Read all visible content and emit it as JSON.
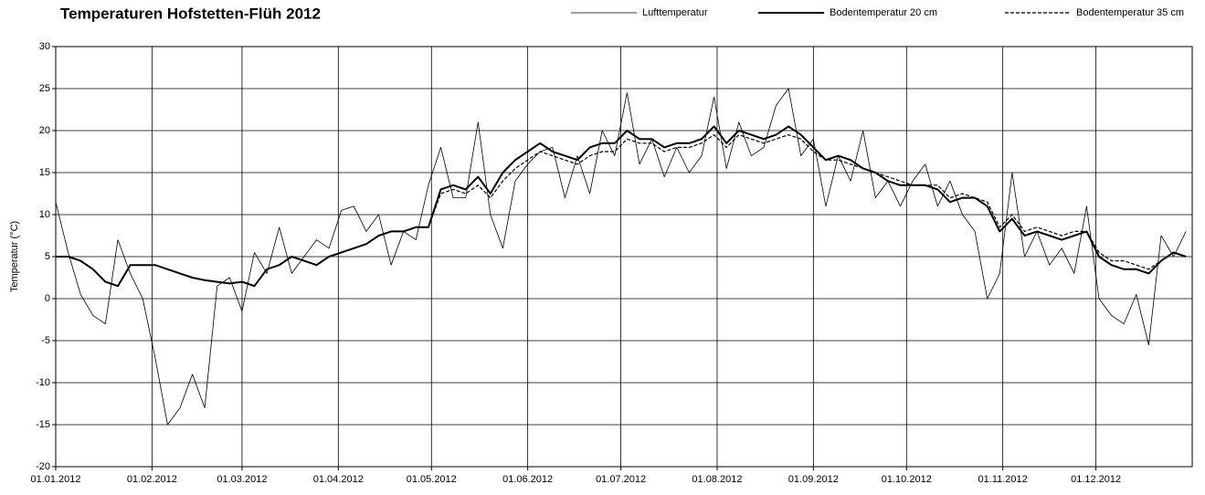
{
  "chart_data": {
    "type": "line",
    "title": "Temperaturen Hofstetten-Flüh 2012",
    "y_label": "Temperatur (°C)",
    "x": [
      "01.01.2012",
      "05.01.2012",
      "09.01.2012",
      "13.01.2012",
      "17.01.2012",
      "21.01.2012",
      "25.01.2012",
      "29.01.2012",
      "02.02.2012",
      "06.02.2012",
      "10.02.2012",
      "14.02.2012",
      "18.02.2012",
      "22.02.2012",
      "26.02.2012",
      "01.03.2012",
      "05.03.2012",
      "09.03.2012",
      "13.03.2012",
      "17.03.2012",
      "21.03.2012",
      "25.03.2012",
      "29.03.2012",
      "02.04.2012",
      "06.04.2012",
      "10.04.2012",
      "14.04.2012",
      "18.04.2012",
      "22.04.2012",
      "26.04.2012",
      "30.04.2012",
      "04.05.2012",
      "08.05.2012",
      "12.05.2012",
      "16.05.2012",
      "20.05.2012",
      "24.05.2012",
      "28.05.2012",
      "01.06.2012",
      "05.06.2012",
      "09.06.2012",
      "13.06.2012",
      "17.06.2012",
      "21.06.2012",
      "25.06.2012",
      "29.06.2012",
      "03.07.2012",
      "07.07.2012",
      "11.07.2012",
      "15.07.2012",
      "19.07.2012",
      "23.07.2012",
      "27.07.2012",
      "31.07.2012",
      "04.08.2012",
      "08.08.2012",
      "12.08.2012",
      "16.08.2012",
      "20.08.2012",
      "24.08.2012",
      "28.08.2012",
      "01.09.2012",
      "05.09.2012",
      "09.09.2012",
      "13.09.2012",
      "17.09.2012",
      "21.09.2012",
      "25.09.2012",
      "29.09.2012",
      "03.10.2012",
      "07.10.2012",
      "11.10.2012",
      "15.10.2012",
      "19.10.2012",
      "23.10.2012",
      "27.10.2012",
      "31.10.2012",
      "04.11.2012",
      "08.11.2012",
      "12.11.2012",
      "16.11.2012",
      "20.11.2012",
      "24.11.2012",
      "28.11.2012",
      "02.12.2012",
      "06.12.2012",
      "10.12.2012",
      "14.12.2012",
      "18.12.2012",
      "22.12.2012",
      "26.12.2012",
      "30.12.2012"
    ],
    "series": [
      {
        "name": "Lufttemperatur",
        "color": "#000000",
        "width": 0.8,
        "dashed": false,
        "values": [
          11.5,
          5.5,
          0.5,
          -2,
          -3,
          7,
          3,
          0,
          -7,
          -15,
          -13,
          -9,
          -13,
          1.5,
          2.5,
          -1.5,
          5.5,
          3,
          8.5,
          3,
          5,
          7,
          6,
          10.5,
          11,
          8,
          10,
          4,
          8,
          7,
          13.5,
          18,
          12,
          12,
          21,
          10,
          6,
          14,
          16,
          17.5,
          18,
          12,
          17,
          12.5,
          20,
          17,
          24.5,
          16,
          19,
          14.5,
          18,
          15,
          17,
          24,
          15.5,
          21,
          17,
          18,
          23,
          25,
          17,
          19,
          11,
          17,
          14,
          20,
          12,
          14,
          11,
          14,
          16,
          11,
          14,
          10,
          8,
          0,
          3,
          15,
          5,
          8,
          4,
          6,
          3,
          11,
          0,
          -2,
          -3,
          0.5,
          -5.5,
          7.5,
          5,
          8
        ]
      },
      {
        "name": "Bodentemperatur 20 cm",
        "color": "#000000",
        "width": 2,
        "dashed": false,
        "values": [
          5,
          5,
          4.5,
          3.5,
          2,
          1.5,
          4,
          4,
          4,
          3.5,
          3,
          2.5,
          2.2,
          2,
          1.8,
          2,
          1.5,
          3.5,
          4,
          5,
          4.5,
          4,
          5,
          5.5,
          6,
          6.5,
          7.5,
          8,
          8,
          8.5,
          8.5,
          13,
          13.5,
          13,
          14.5,
          12.5,
          15,
          16.5,
          17.5,
          18.5,
          17.5,
          17,
          16.5,
          18,
          18.5,
          18.5,
          20,
          19,
          19,
          18,
          18.5,
          18.5,
          19,
          20.5,
          18.5,
          20,
          19.5,
          19,
          19.5,
          20.5,
          19.5,
          18,
          16.5,
          17,
          16.5,
          15.5,
          15,
          14,
          13.5,
          13.5,
          13.5,
          13,
          11.5,
          12,
          12,
          11,
          8,
          9.5,
          7.5,
          8,
          7.5,
          7,
          7.5,
          8,
          5,
          4,
          3.5,
          3.5,
          3,
          4.5,
          5.5,
          5
        ]
      },
      {
        "name": "Bodentemperatur 35 cm",
        "color": "#000000",
        "width": 1.2,
        "dashed": true,
        "values": [
          5,
          5,
          4.5,
          3.5,
          2,
          1.5,
          4,
          4,
          4,
          3.5,
          3,
          2.5,
          2.2,
          2,
          1.8,
          2,
          1.5,
          3.5,
          4,
          5,
          4.5,
          4,
          5,
          5.5,
          6,
          6.5,
          7.5,
          8,
          8,
          8.5,
          8.5,
          12.5,
          13,
          12.5,
          13.5,
          12,
          14,
          15.5,
          16.5,
          17.5,
          17,
          16.5,
          16,
          17,
          17.5,
          17.5,
          19,
          18.5,
          18.5,
          17.5,
          18,
          18,
          18.5,
          19.5,
          18,
          19.5,
          19,
          18.5,
          19,
          19.5,
          19,
          17.5,
          16.5,
          16.5,
          16,
          15.5,
          15,
          14.5,
          14,
          13.5,
          13.5,
          13.5,
          12,
          12.5,
          12,
          11.5,
          8.5,
          10,
          8,
          8.5,
          8,
          7.5,
          8,
          8,
          5.5,
          4.5,
          4.5,
          4,
          3.5,
          4.5,
          5.5,
          5
        ]
      }
    ],
    "xlim": [
      "01.01.2012",
      "01.01.2013"
    ],
    "xticks": [
      "01.01.2012",
      "01.02.2012",
      "01.03.2012",
      "01.04.2012",
      "01.05.2012",
      "01.06.2012",
      "01.07.2012",
      "01.08.2012",
      "01.09.2012",
      "01.10.2012",
      "01.11.2012",
      "01.12.2012"
    ],
    "ylim": [
      -20,
      30
    ],
    "yticks": [
      -20,
      -15,
      -10,
      -5,
      0,
      5,
      10,
      15,
      20,
      25,
      30
    ],
    "grid": true,
    "legend": "top-right"
  }
}
